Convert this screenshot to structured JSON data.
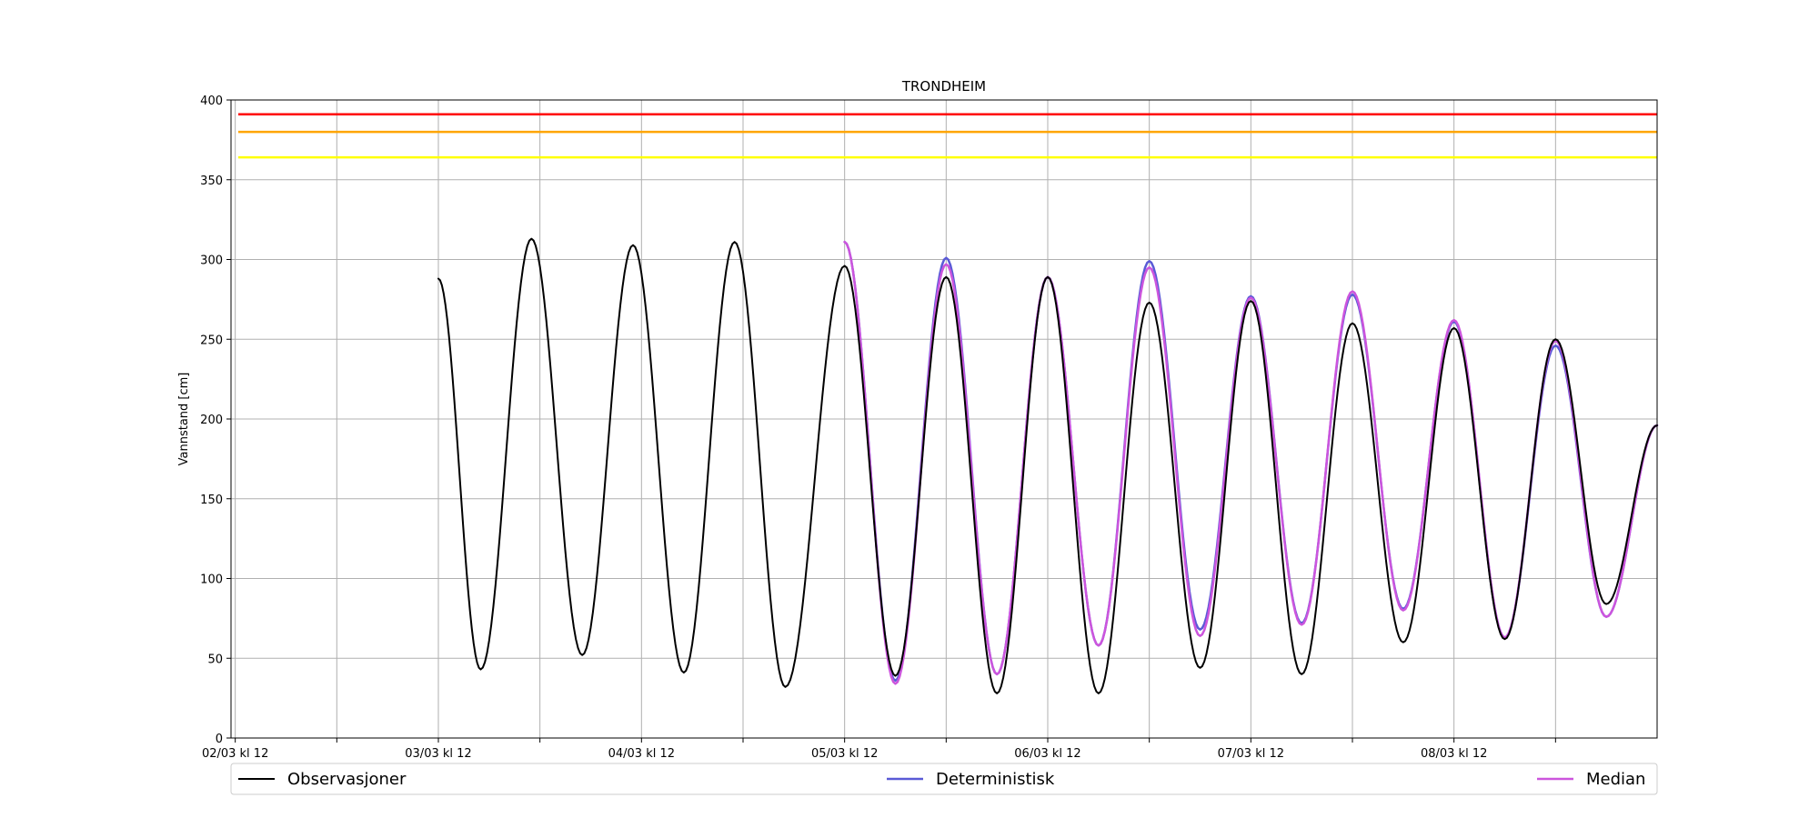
{
  "chart_data": {
    "type": "line",
    "title": "TRONDHEIM",
    "ylabel": "Vannstand [cm]",
    "xlabel": "",
    "x_unit": "hours since 02/03 kl 12",
    "xlim": [
      -0.5,
      168.0
    ],
    "ylim": [
      0,
      400
    ],
    "yticks": [
      0,
      50,
      100,
      150,
      200,
      250,
      300,
      350,
      400
    ],
    "xtick_labels": [
      {
        "x": 0,
        "label": "02/03 kl 12"
      },
      {
        "x": 12,
        "label": ""
      },
      {
        "x": 24,
        "label": "03/03 kl 12"
      },
      {
        "x": 36,
        "label": ""
      },
      {
        "x": 48,
        "label": "04/03 kl 12"
      },
      {
        "x": 60,
        "label": ""
      },
      {
        "x": 72,
        "label": "05/03 kl 12"
      },
      {
        "x": 84,
        "label": ""
      },
      {
        "x": 96,
        "label": "06/03 kl 12"
      },
      {
        "x": 108,
        "label": ""
      },
      {
        "x": 120,
        "label": "07/03 kl 12"
      },
      {
        "x": 132,
        "label": ""
      },
      {
        "x": 144,
        "label": "08/03 kl 12"
      },
      {
        "x": 156,
        "label": ""
      }
    ],
    "grid": true,
    "legend_placement": "below",
    "thresholds": [
      {
        "y": 391,
        "color": "#ff0000"
      },
      {
        "y": 380,
        "color": "#ffa500"
      },
      {
        "y": 364,
        "color": "#ffff00"
      }
    ],
    "series": [
      {
        "name": "Observasjoner",
        "color": "#000000",
        "points": [
          [
            24,
            288
          ],
          [
            29,
            43
          ],
          [
            35,
            313
          ],
          [
            41,
            52
          ],
          [
            47,
            309
          ],
          [
            53,
            41
          ],
          [
            59,
            311
          ],
          [
            65,
            32
          ],
          [
            72,
            296
          ],
          [
            78,
            39
          ],
          [
            84,
            289
          ],
          [
            90,
            28
          ],
          [
            96,
            289
          ],
          [
            102,
            28
          ],
          [
            108,
            273
          ],
          [
            114,
            44
          ],
          [
            120,
            274
          ],
          [
            126,
            40
          ],
          [
            132,
            260
          ],
          [
            138,
            60
          ],
          [
            144,
            257
          ],
          [
            150,
            62
          ],
          [
            156,
            250
          ],
          [
            162,
            84
          ],
          [
            168,
            196
          ]
        ]
      },
      {
        "name": "Deterministisk",
        "color": "#5a5ad6",
        "points": [
          [
            72,
            311
          ],
          [
            78,
            36
          ],
          [
            84,
            301
          ],
          [
            90,
            40
          ],
          [
            96,
            289
          ],
          [
            102,
            58
          ],
          [
            108,
            299
          ],
          [
            114,
            68
          ],
          [
            120,
            277
          ],
          [
            126,
            72
          ],
          [
            132,
            278
          ],
          [
            138,
            81
          ],
          [
            144,
            261
          ],
          [
            150,
            63
          ],
          [
            156,
            246
          ],
          [
            162,
            76
          ],
          [
            168,
            196
          ]
        ]
      },
      {
        "name": "Median",
        "color": "#cc55dd",
        "points": [
          [
            72,
            311
          ],
          [
            78,
            34
          ],
          [
            84,
            297
          ],
          [
            90,
            40
          ],
          [
            96,
            289
          ],
          [
            102,
            58
          ],
          [
            108,
            295
          ],
          [
            114,
            64
          ],
          [
            120,
            276
          ],
          [
            126,
            71
          ],
          [
            132,
            280
          ],
          [
            138,
            80
          ],
          [
            144,
            262
          ],
          [
            150,
            63
          ],
          [
            156,
            249
          ],
          [
            162,
            76
          ],
          [
            168,
            196
          ]
        ]
      }
    ]
  }
}
